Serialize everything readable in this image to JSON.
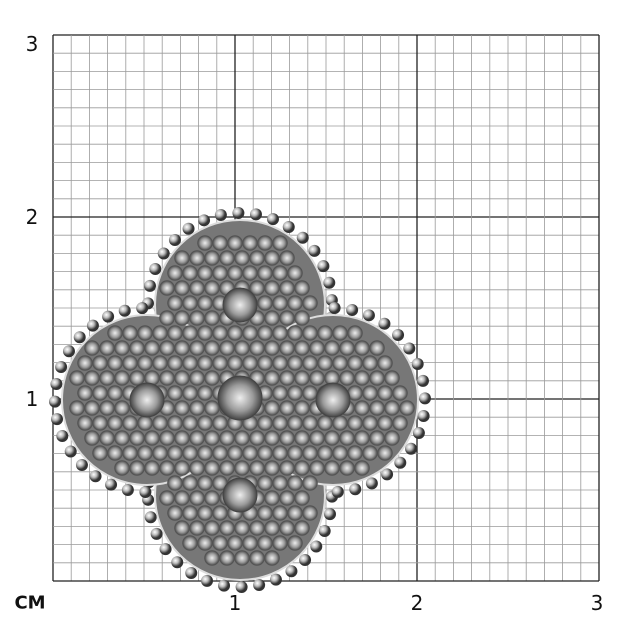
{
  "scale": {
    "unit_label": "CM",
    "y_labels": [
      "3",
      "2",
      "1"
    ],
    "x_labels": [
      "1",
      "2",
      "3"
    ],
    "range_cm": [
      0,
      3
    ],
    "minor_divisions_per_cm": 10
  },
  "colors": {
    "minor_grid": "#9a9a9a",
    "major_grid": "#222222",
    "metal": "#8a8a8a"
  },
  "product": {
    "type": "quatrefoil clover pendant with pavé stones and a beaded edge"
  }
}
